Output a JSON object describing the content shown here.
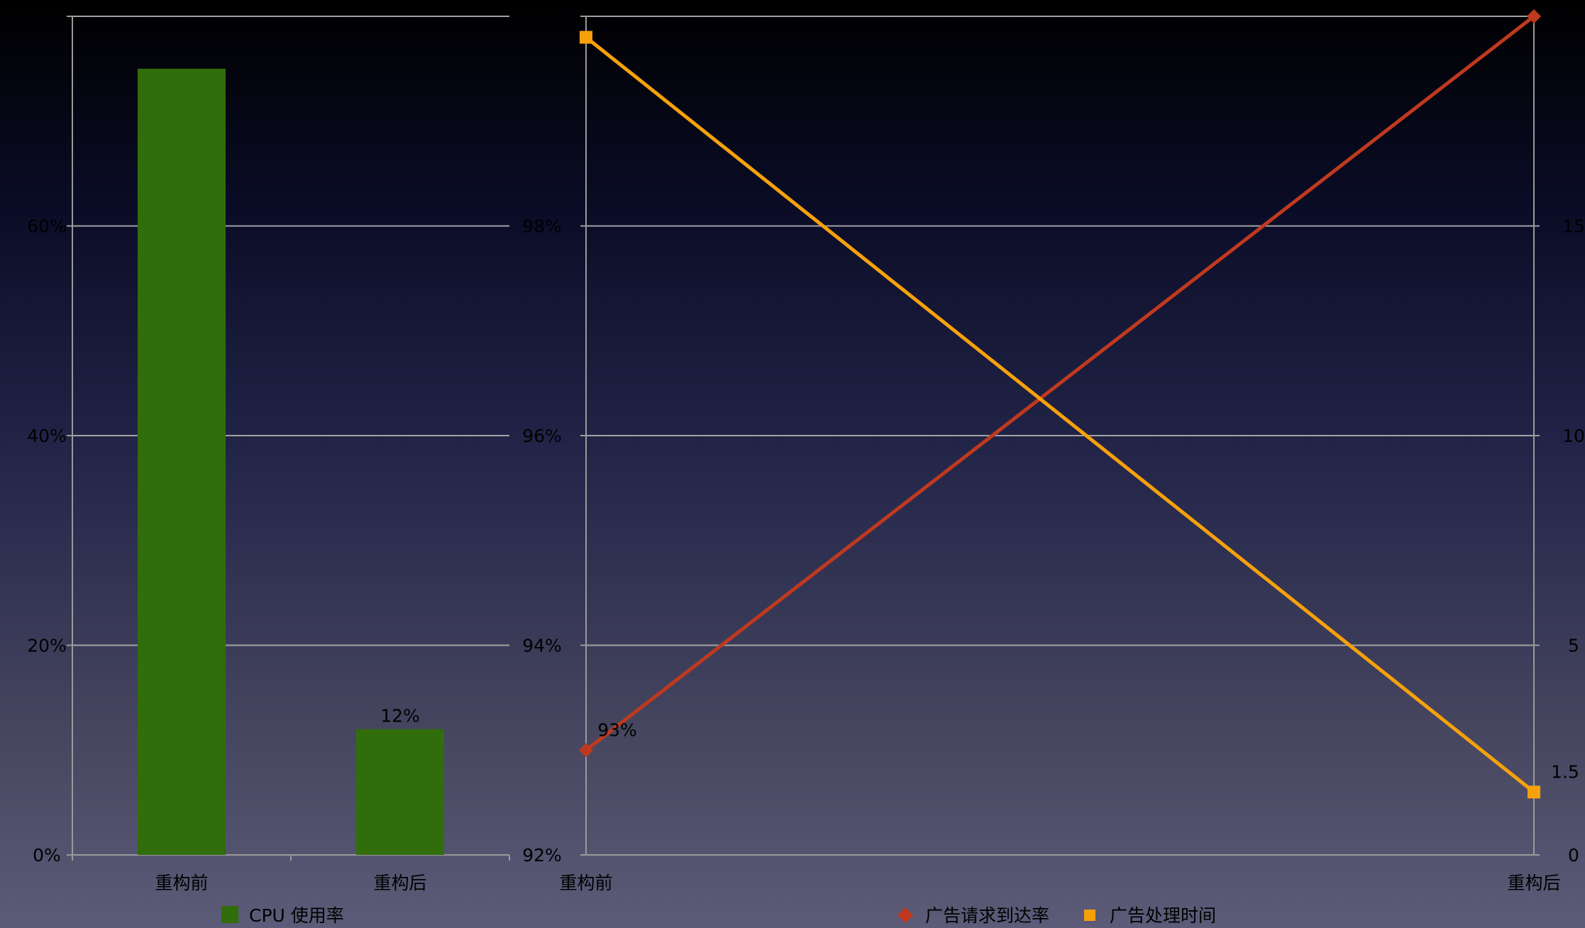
{
  "chart_data": [
    {
      "type": "bar",
      "categories": [
        "重构前",
        "重构后"
      ],
      "series": [
        {
          "name": "CPU 使用率",
          "values": [
            75,
            12
          ],
          "labels": [
            "",
            "12%"
          ],
          "color": "#316d0b"
        }
      ],
      "y_ticks": [
        "0%",
        "20%",
        "40%",
        "60%",
        ""
      ],
      "ylim": [
        0,
        80
      ],
      "grid": true,
      "legend": "bottom-center"
    },
    {
      "type": "line",
      "categories": [
        "重构前",
        "重构后"
      ],
      "series": [
        {
          "name": "广告请求到达率",
          "axis": "left",
          "values": [
            93,
            100
          ],
          "labels": [
            "93%",
            ""
          ],
          "marker": "diamond",
          "color": "#c0391e"
        },
        {
          "name": "广告处理时间",
          "axis": "right",
          "values": [
            19.5,
            1.5
          ],
          "labels": [
            "",
            "1.5"
          ],
          "marker": "square",
          "color": "#f6a10c"
        }
      ],
      "y_left_ticks": [
        "92%",
        "94%",
        "96%",
        "98%",
        ""
      ],
      "ylim_left": [
        92,
        100
      ],
      "y_right_ticks": [
        "0",
        "5",
        "10",
        "15",
        ""
      ],
      "ylim_right": [
        0,
        20
      ],
      "grid": true,
      "legend": "bottom-center"
    }
  ]
}
